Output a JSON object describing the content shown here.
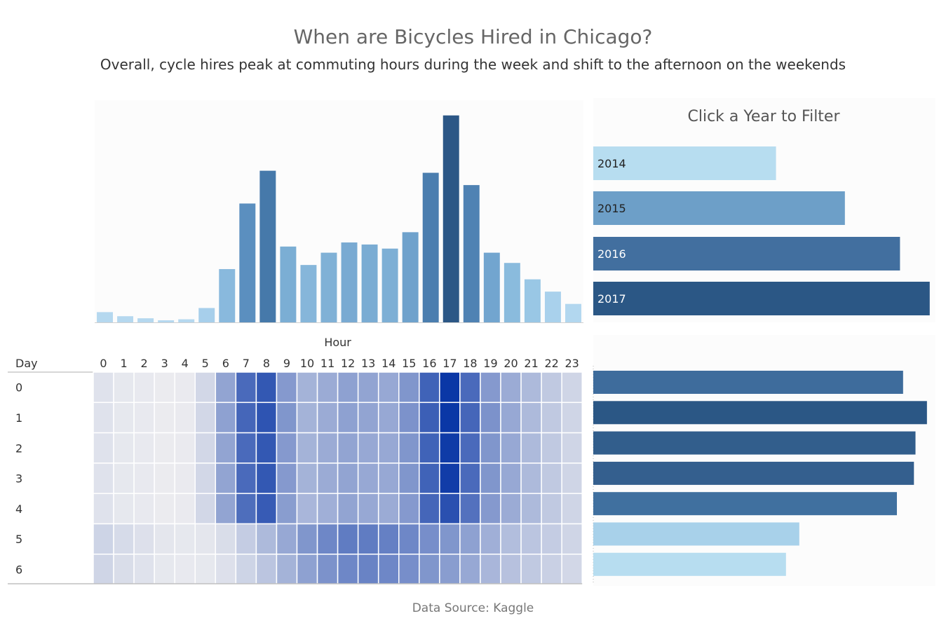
{
  "header": {
    "title": "When are Bicycles Hired in Chicago?",
    "subtitle": "Overall, cycle hires peak at commuting hours during the week and shift to the afternoon on the weekends"
  },
  "filter": {
    "title": "Click a Year to Filter"
  },
  "footer": {
    "source": "Data Source: Kaggle"
  },
  "chart_data": [
    {
      "type": "bar",
      "orientation": "vertical",
      "categories": [
        0,
        1,
        2,
        3,
        4,
        5,
        6,
        7,
        8,
        9,
        10,
        11,
        12,
        13,
        14,
        15,
        16,
        17,
        18,
        19,
        20,
        21,
        22,
        23
      ],
      "values": [
        5,
        3,
        2,
        1,
        1.5,
        7,
        26,
        58,
        74,
        37,
        28,
        34,
        39,
        38,
        36,
        44,
        73,
        101,
        67,
        34,
        29,
        21,
        15,
        9
      ],
      "ylim": [
        0,
        105
      ],
      "relative_scale": "approximate, peak at hour 17 = 101",
      "colors": [
        "#b5d8ef",
        "#b5d8ef",
        "#b5d8ef",
        "#b5d8ef",
        "#b5d8ef",
        "#a7cfeb",
        "#89b9dd",
        "#5b8fbf",
        "#4679aa",
        "#7baed4",
        "#86b6da",
        "#80b1d6",
        "#79aad2",
        "#7aacd3",
        "#7dafd5",
        "#6fa2cc",
        "#4b7eaf",
        "#2c5786",
        "#4f82b3",
        "#72a5cf",
        "#8abbdd",
        "#99c7e5",
        "#a9d1ec",
        "#b2d7ef"
      ]
    },
    {
      "type": "bar",
      "orientation": "horizontal",
      "categories": [
        "2014",
        "2015",
        "2016",
        "2017"
      ],
      "values": [
        252,
        347,
        423,
        464
      ],
      "xlim": [
        0,
        470
      ],
      "colors": [
        "#b7ddf0",
        "#6d9fc8",
        "#426f9f",
        "#2b5785"
      ],
      "label_colors": [
        "#222222",
        "#222222",
        "#ffffff",
        "#ffffff"
      ]
    },
    {
      "type": "heatmap",
      "x_label": "Hour",
      "y_label": "Day",
      "x": [
        "0",
        "1",
        "2",
        "3",
        "4",
        "5",
        "6",
        "7",
        "8",
        "9",
        "10",
        "11",
        "12",
        "13",
        "14",
        "15",
        "16",
        "17",
        "18",
        "19",
        "20",
        "21",
        "22",
        "23"
      ],
      "y": [
        "0",
        "1",
        "2",
        "3",
        "4",
        "5",
        "6"
      ],
      "values": [
        [
          6,
          3,
          2,
          1,
          1.5,
          12,
          40,
          72,
          82,
          46,
          32,
          36,
          42,
          40,
          38,
          48,
          76,
          100,
          72,
          46,
          36,
          28,
          20,
          13
        ],
        [
          6,
          3,
          2,
          1,
          1.5,
          12,
          42,
          74,
          84,
          48,
          32,
          36,
          42,
          40,
          38,
          50,
          78,
          100,
          74,
          50,
          38,
          28,
          20,
          13
        ],
        [
          6,
          3,
          2,
          1,
          1.5,
          12,
          40,
          72,
          82,
          46,
          32,
          36,
          40,
          38,
          38,
          48,
          76,
          98,
          72,
          48,
          38,
          28,
          20,
          13
        ],
        [
          6,
          3,
          2,
          1,
          1.5,
          12,
          40,
          72,
          82,
          46,
          32,
          36,
          40,
          38,
          38,
          48,
          76,
          97,
          72,
          48,
          38,
          28,
          20,
          13
        ],
        [
          6,
          3,
          2,
          1,
          1.5,
          12,
          40,
          70,
          80,
          44,
          30,
          34,
          40,
          38,
          36,
          46,
          74,
          86,
          68,
          46,
          36,
          28,
          20,
          13
        ],
        [
          14,
          10,
          7,
          4,
          3,
          4,
          9,
          18,
          28,
          38,
          48,
          56,
          62,
          62,
          60,
          56,
          52,
          48,
          42,
          34,
          26,
          22,
          18,
          13
        ],
        [
          13,
          9,
          6,
          3,
          2,
          3,
          7,
          14,
          22,
          32,
          42,
          50,
          56,
          58,
          56,
          52,
          48,
          44,
          38,
          30,
          24,
          20,
          16,
          12
        ]
      ],
      "color_scale": [
        "#ededf0",
        "#0a37a6"
      ]
    },
    {
      "type": "bar",
      "orientation": "horizontal",
      "categories": [
        "0",
        "1",
        "2",
        "3",
        "4",
        "5",
        "6"
      ],
      "values": [
        1.0,
        1.077,
        1.04,
        1.035,
        0.98,
        0.665,
        0.622
      ],
      "xlim": [
        0,
        1.1
      ],
      "colors": [
        "#3e6c9c",
        "#2b5785",
        "#325e8c",
        "#345f8e",
        "#40709f",
        "#a8d1ea",
        "#b7ddf0"
      ]
    }
  ]
}
